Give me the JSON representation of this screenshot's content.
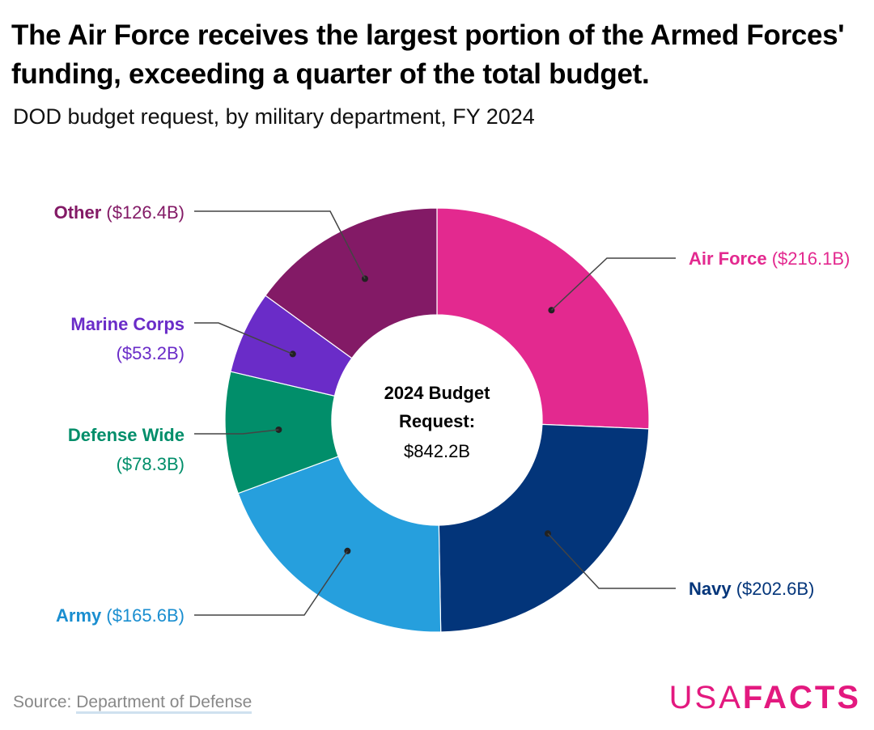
{
  "header": {
    "title": "The Air Force receives the largest portion of the Armed Forces' funding, exceeding a quarter of the total budget.",
    "subtitle": "DOD budget request, by military department, FY 2024"
  },
  "chart_data": {
    "type": "pie",
    "style": "donut",
    "title": "The Air Force receives the largest portion of the Armed Forces' funding, exceeding a quarter of the total budget.",
    "subtitle": "DOD budget request, by military department, FY 2024",
    "center_label": [
      "2024 Budget",
      "Request:"
    ],
    "center_value": "$842.2B",
    "total": 842.2,
    "unit": "billions USD",
    "slices": [
      {
        "name": "Air Force",
        "value": 216.1,
        "value_label": "($216.1B)",
        "color": "#e3298f"
      },
      {
        "name": "Navy",
        "value": 202.6,
        "value_label": "($202.6B)",
        "color": "#03357a"
      },
      {
        "name": "Army",
        "value": 165.6,
        "value_label": "($165.6B)",
        "color": "#269fdd",
        "text_color": "#1a8ed0"
      },
      {
        "name": "Defense Wide",
        "value": 78.3,
        "value_label": "($78.3B)",
        "color": "#018e6a"
      },
      {
        "name": "Marine Corps",
        "value": 53.2,
        "value_label": "($53.2B)",
        "color": "#6a2cc8"
      },
      {
        "name": "Other",
        "value": 126.4,
        "value_label": "($126.4B)",
        "color": "#831a66"
      }
    ]
  },
  "footer": {
    "source_prefix": "Source: ",
    "source_name": "Department of Defense",
    "logo_usa": "USA",
    "logo_facts": "FACTS"
  }
}
